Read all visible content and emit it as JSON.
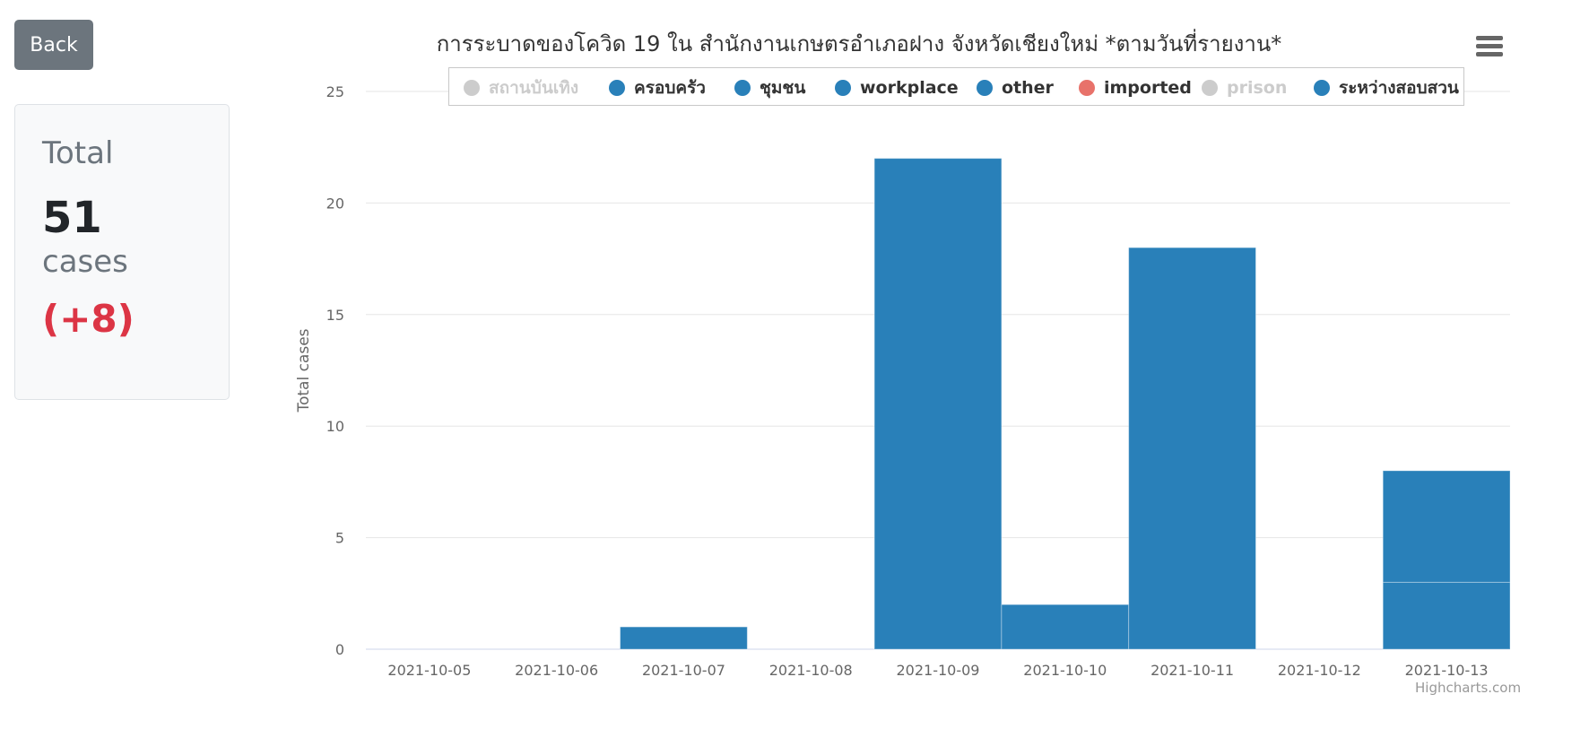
{
  "back_button": {
    "label": "Back"
  },
  "stat": {
    "title": "Total",
    "count": "51",
    "unit": "cases",
    "delta": "(+8)",
    "delta_color": "#dc3545"
  },
  "menu": {
    "icon": "hamburger-menu-icon"
  },
  "credit": "Highcharts.com",
  "chart_data": {
    "type": "bar",
    "stacked": true,
    "title": "การระบาดของโควิด 19 ใน สำนักงานเกษตรอำเภอฝาง จังหวัดเชียงใหม่ *ตามวันที่รายงาน*",
    "xlabel": "",
    "ylabel": "Total cases",
    "ylim": [
      0,
      25
    ],
    "yticks": [
      0,
      5,
      10,
      15,
      20,
      25
    ],
    "grid": true,
    "legend_position": "top",
    "categories": [
      "2021-10-05",
      "2021-10-06",
      "2021-10-07",
      "2021-10-08",
      "2021-10-09",
      "2021-10-10",
      "2021-10-11",
      "2021-10-12",
      "2021-10-13"
    ],
    "series": [
      {
        "name": "สถานบันเทิง",
        "color": "#cccccc",
        "visible": false,
        "values": [
          0,
          0,
          0,
          0,
          0,
          0,
          0,
          0,
          0
        ]
      },
      {
        "name": "ครอบครัว",
        "color": "#2980b9",
        "visible": true,
        "values": [
          0,
          0,
          0,
          0,
          0,
          0,
          0,
          0,
          3
        ]
      },
      {
        "name": "ชุมชน",
        "color": "#2980b9",
        "visible": true,
        "values": [
          0,
          0,
          0,
          0,
          0,
          0,
          0,
          0,
          0
        ]
      },
      {
        "name": "workplace",
        "color": "#2980b9",
        "visible": true,
        "values": [
          0,
          0,
          0,
          0,
          0,
          0,
          0,
          0,
          0
        ]
      },
      {
        "name": "other",
        "color": "#2980b9",
        "visible": true,
        "values": [
          0,
          0,
          0,
          0,
          0,
          0,
          0,
          0,
          0
        ]
      },
      {
        "name": "imported",
        "color": "#e8726a",
        "visible": true,
        "values": [
          0,
          0,
          0,
          0,
          0,
          0,
          0,
          0,
          0
        ]
      },
      {
        "name": "prison",
        "color": "#cccccc",
        "visible": false,
        "values": [
          0,
          0,
          0,
          0,
          0,
          0,
          0,
          0,
          0
        ]
      },
      {
        "name": "ระหว่างสอบสวน",
        "color": "#2980b9",
        "visible": true,
        "values": [
          0,
          0,
          1,
          0,
          22,
          2,
          18,
          0,
          5
        ]
      }
    ]
  }
}
